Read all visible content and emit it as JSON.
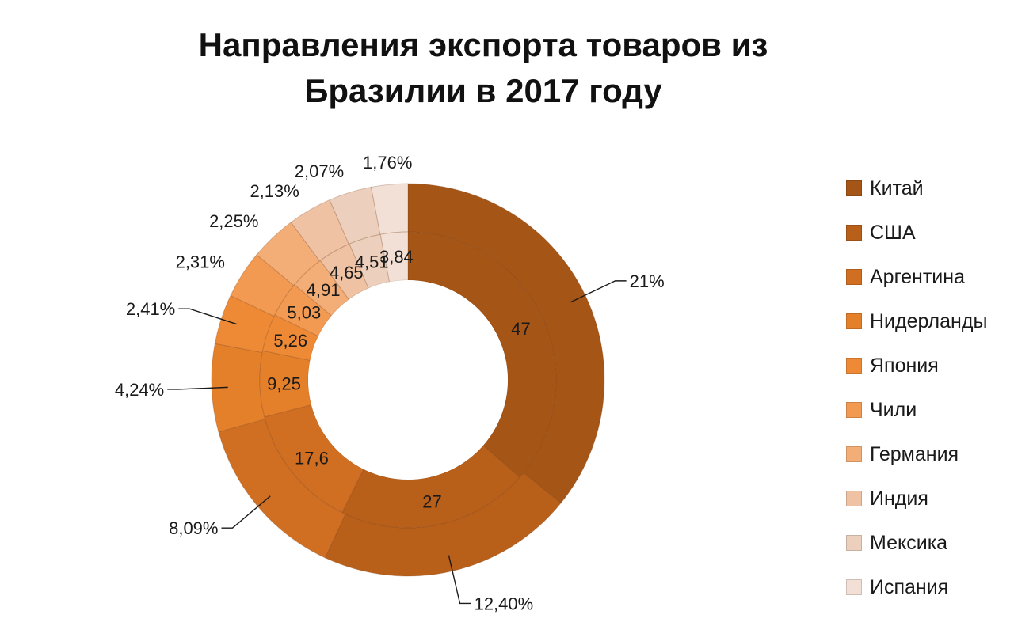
{
  "title": [
    "Направления экспорта товаров из",
    "Бразилии в 2017 году"
  ],
  "chart_data": {
    "type": "donut",
    "categories": [
      "Китай",
      "США",
      "Аргентина",
      "Нидерланды",
      "Япония",
      "Чили",
      "Германия",
      "Индия",
      "Мексика",
      "Испания"
    ],
    "series": [
      {
        "ring": "outer",
        "values": [
          21,
          12.4,
          8.09,
          4.24,
          2.41,
          2.31,
          2.25,
          2.13,
          2.07,
          1.76
        ],
        "labels": [
          "21%",
          "12,40%",
          "8,09%",
          "4,24%",
          "2,41%",
          "2,31%",
          "2,25%",
          "2,13%",
          "2,07%",
          "1,76%"
        ]
      },
      {
        "ring": "inner",
        "values": [
          47,
          27,
          17.6,
          9.25,
          5.26,
          5.03,
          4.91,
          4.65,
          4.51,
          3.84
        ],
        "labels": [
          "47",
          "27",
          "17,6",
          "9,25",
          "5,26",
          "5,03",
          "4,91",
          "4,65",
          "4,51",
          "3,84"
        ]
      }
    ],
    "colors": [
      "#a55515",
      "#b85f1a",
      "#d06f22",
      "#e47f2a",
      "#ee8a35",
      "#f29a52",
      "#f3ae78",
      "#efc2a4",
      "#ecd0bd",
      "#f2e0d6"
    ],
    "legend_position": "right"
  }
}
